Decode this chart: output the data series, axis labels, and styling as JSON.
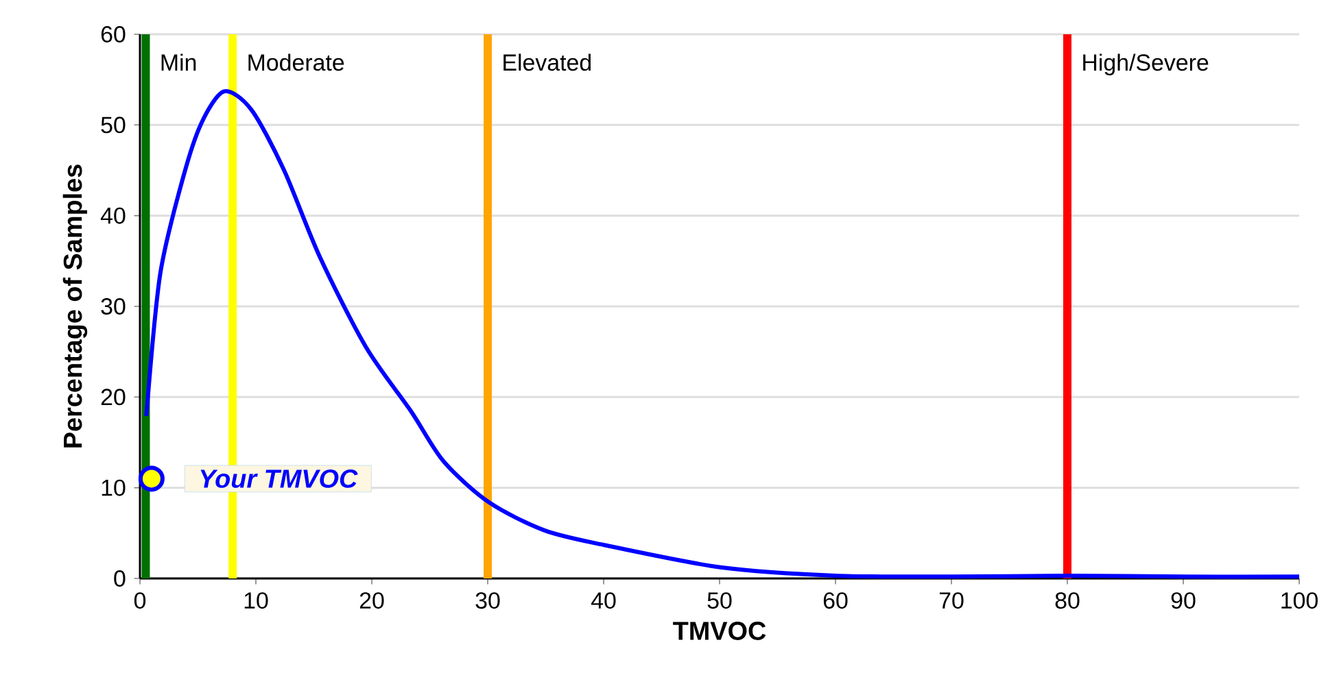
{
  "chart_data": {
    "type": "line",
    "xlabel": "TMVOC",
    "ylabel": "Percentage of Samples",
    "xlim": [
      0,
      100
    ],
    "xticks": [
      0,
      10,
      20,
      30,
      40,
      50,
      60,
      70,
      80,
      90,
      100
    ],
    "ylim": [
      0,
      60
    ],
    "yticks": [
      0,
      10,
      20,
      30,
      40,
      50,
      60
    ],
    "grid": "y",
    "series": [
      {
        "color": "#0000ff",
        "x": [
          0.55,
          1.74,
          3.7,
          5.3,
          7.25,
          9.6,
          12.4,
          15.5,
          19.5,
          23.4,
          26.2,
          30.1,
          34.9,
          40,
          50.2,
          60,
          70,
          80,
          90,
          100
        ],
        "values": [
          17.9,
          33.5,
          44.1,
          50.2,
          53.7,
          51.7,
          45.1,
          35.5,
          25.5,
          18.4,
          12.9,
          8.4,
          5.3,
          3.7,
          1.2,
          0.3,
          0.2,
          0.3,
          0.2,
          0.2
        ]
      },
      {
        "type": "scatter",
        "name": "Your TMVOC",
        "color": "#ffff00",
        "marker": "circle",
        "x": [
          1
        ],
        "values": [
          11
        ]
      }
    ],
    "ref_lines": [
      {
        "axis": "x",
        "value": 0.5,
        "label": "Min",
        "color": "#007000"
      },
      {
        "axis": "x",
        "value": 8,
        "label": "Moderate",
        "color": "#ffff00"
      },
      {
        "axis": "x",
        "value": 30,
        "label": "Elevated",
        "color": "#ffa500"
      },
      {
        "axis": "x",
        "value": 80,
        "label": "High/Severe",
        "color": "#ff0000"
      }
    ]
  }
}
